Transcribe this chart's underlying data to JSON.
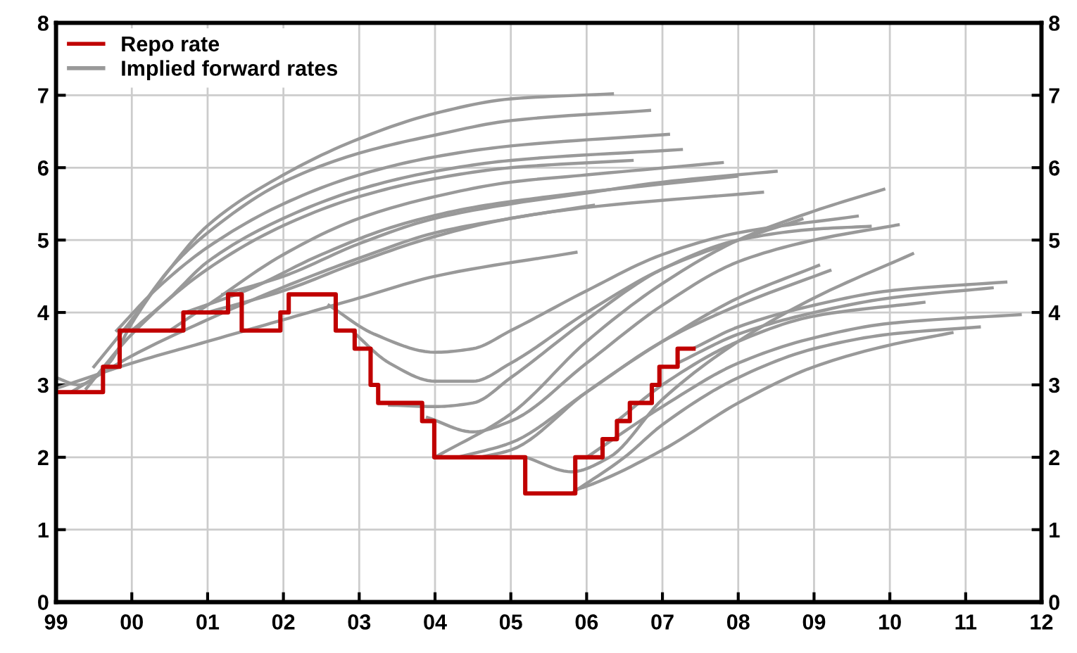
{
  "chart_data": {
    "type": "line",
    "xlim": [
      1999,
      2012
    ],
    "xticks": [
      {
        "value": 1999,
        "label": "99"
      },
      {
        "value": 2000,
        "label": "00"
      },
      {
        "value": 2001,
        "label": "01"
      },
      {
        "value": 2002,
        "label": "02"
      },
      {
        "value": 2003,
        "label": "03"
      },
      {
        "value": 2004,
        "label": "04"
      },
      {
        "value": 2005,
        "label": "05"
      },
      {
        "value": 2006,
        "label": "06"
      },
      {
        "value": 2007,
        "label": "07"
      },
      {
        "value": 2008,
        "label": "08"
      },
      {
        "value": 2009,
        "label": "09"
      },
      {
        "value": 2010,
        "label": "10"
      },
      {
        "value": 2011,
        "label": "11"
      },
      {
        "value": 2012,
        "label": "12"
      }
    ],
    "ylim": [
      0,
      8
    ],
    "yticks": [
      0,
      1,
      2,
      3,
      4,
      5,
      6,
      7,
      8
    ],
    "y2lim": [
      0,
      8
    ],
    "y2ticks": [
      0,
      1,
      2,
      3,
      4,
      5,
      6,
      7,
      8
    ],
    "grid": true,
    "legend": "top left",
    "line_style": "solid",
    "marker": "none",
    "series": [
      {
        "name": "Repo rate",
        "type": "step",
        "color": "#c00000",
        "x": [
          1999.0,
          1999.62,
          1999.84,
          2000.68,
          2001.27,
          2001.45,
          2001.96,
          2002.07,
          2002.69,
          2002.94,
          2003.15,
          2003.25,
          2003.83,
          2003.99,
          2005.19,
          2005.85,
          2006.21,
          2006.4,
          2006.57,
          2006.86,
          2006.96,
          2007.2,
          2007.41
        ],
        "values": [
          2.9,
          3.25,
          3.75,
          4.0,
          4.25,
          3.75,
          4.0,
          4.25,
          3.75,
          3.5,
          3.0,
          2.75,
          2.5,
          2.0,
          1.5,
          2.0,
          2.25,
          2.5,
          2.75,
          3.0,
          3.25,
          3.5,
          3.5
        ]
      },
      {
        "name": "Implied forward rates",
        "color": "#999999",
        "x": [
          1999.0,
          1999.3,
          1999.7,
          2000,
          2000.5,
          2001,
          2002,
          2003,
          2004,
          2005,
          2006.34
        ],
        "values": [
          3.1,
          3.0,
          3.3,
          3.85,
          4.6,
          5.2,
          5.9,
          6.4,
          6.75,
          6.95,
          7.02
        ]
      },
      {
        "color": "#999999",
        "x": [
          1999.5,
          2000,
          2000.5,
          2001,
          2002,
          2003,
          2004,
          2005,
          2006.83
        ],
        "values": [
          3.25,
          3.9,
          4.6,
          5.1,
          5.8,
          6.2,
          6.45,
          6.65,
          6.79
        ]
      },
      {
        "color": "#999999",
        "x": [
          1999.8,
          2000.3,
          2001,
          2002,
          2003,
          2004,
          2005,
          2007.08
        ],
        "values": [
          3.75,
          4.3,
          4.9,
          5.5,
          5.9,
          6.15,
          6.3,
          6.46
        ]
      },
      {
        "color": "#999999",
        "x": [
          2000.0,
          2000.5,
          2001,
          2002,
          2003,
          2004,
          2005,
          2007.25
        ],
        "values": [
          3.75,
          4.2,
          4.7,
          5.3,
          5.7,
          5.95,
          6.1,
          6.25
        ]
      },
      {
        "color": "#999999",
        "x": [
          1999.4,
          2000,
          2001,
          2002,
          2003,
          2004,
          2005,
          2006.6
        ],
        "values": [
          2.95,
          3.7,
          4.6,
          5.2,
          5.6,
          5.85,
          6.0,
          6.1
        ]
      },
      {
        "color": "#999999",
        "x": [
          2000.5,
          2001,
          2002,
          2003,
          2004,
          2005,
          2006,
          2007.79
        ],
        "values": [
          3.75,
          4.1,
          4.8,
          5.3,
          5.6,
          5.8,
          5.9,
          6.07
        ]
      },
      {
        "color": "#999999",
        "x": [
          2001.2,
          2002,
          2003,
          2004,
          2005,
          2006,
          2007,
          2008.5
        ],
        "values": [
          4.25,
          4.5,
          4.95,
          5.3,
          5.5,
          5.65,
          5.8,
          5.95
        ]
      },
      {
        "color": "#999999",
        "x": [
          2000.7,
          2001.5,
          2002.5,
          2003.5,
          2004.5,
          2005.5,
          2007.98
        ],
        "values": [
          4.0,
          4.3,
          4.8,
          5.2,
          5.45,
          5.6,
          5.88
        ]
      },
      {
        "color": "#999999",
        "x": [
          2001.0,
          2002,
          2003,
          2004,
          2005,
          2006,
          2008.32
        ],
        "values": [
          4.0,
          4.3,
          4.7,
          5.05,
          5.3,
          5.45,
          5.66
        ]
      },
      {
        "color": "#999999",
        "x": [
          1999.2,
          2000,
          2001,
          2002,
          2003,
          2004,
          2005,
          2006.09
        ],
        "values": [
          2.9,
          3.4,
          3.9,
          4.35,
          4.75,
          5.1,
          5.3,
          5.48
        ]
      },
      {
        "color": "#999999",
        "x": [
          1999.0,
          2000,
          2001,
          2002,
          2003,
          2004,
          2005.86
        ],
        "values": [
          2.95,
          3.3,
          3.6,
          3.9,
          4.2,
          4.5,
          4.83
        ]
      },
      {
        "color": "#999999",
        "x": [
          2002.6,
          2003.2,
          2004,
          2004.5,
          2005,
          2006,
          2007,
          2008,
          2009.57
        ],
        "values": [
          4.1,
          3.7,
          3.45,
          3.5,
          3.75,
          4.3,
          4.8,
          5.1,
          5.33
        ]
      },
      {
        "color": "#999999",
        "x": [
          2002.9,
          2003.4,
          2004,
          2004.5,
          2005,
          2006,
          2007,
          2008,
          2008.84
        ],
        "values": [
          3.75,
          3.3,
          3.05,
          3.05,
          3.3,
          4.0,
          4.6,
          5.0,
          5.29
        ]
      },
      {
        "color": "#999999",
        "x": [
          2003.4,
          2004,
          2004.5,
          2005,
          2006,
          2007,
          2008,
          2009,
          2009.74
        ],
        "values": [
          2.72,
          2.7,
          2.75,
          3.1,
          3.9,
          4.6,
          5.0,
          5.15,
          5.19
        ]
      },
      {
        "color": "#999999",
        "x": [
          2003.9,
          2004.5,
          2005,
          2006,
          2007,
          2008,
          2009,
          2010.11
        ],
        "values": [
          2.55,
          2.35,
          2.5,
          3.3,
          4.1,
          4.7,
          5.0,
          5.21
        ]
      },
      {
        "color": "#999999",
        "x": [
          2004.0,
          2005,
          2006,
          2007,
          2008,
          2009,
          2009.92
        ],
        "values": [
          2.0,
          2.6,
          3.6,
          4.4,
          5.0,
          5.4,
          5.7
        ]
      },
      {
        "color": "#999999",
        "x": [
          2004.3,
          2005,
          2006,
          2007,
          2008,
          2009.21
        ],
        "values": [
          2.0,
          2.2,
          2.9,
          3.6,
          4.1,
          4.58
        ]
      },
      {
        "color": "#999999",
        "x": [
          2004.6,
          2005,
          2006,
          2007,
          2008,
          2009.06
        ],
        "values": [
          2.0,
          2.1,
          2.9,
          3.6,
          4.2,
          4.65
        ]
      },
      {
        "color": "#999999",
        "x": [
          2005.2,
          2005.8,
          2006.3,
          2007,
          2008,
          2009,
          2010.3
        ],
        "values": [
          2.0,
          1.8,
          2.0,
          2.8,
          3.6,
          4.2,
          4.81
        ]
      },
      {
        "color": "#999999",
        "x": [
          2007.4,
          2008,
          2009,
          2010,
          2011.53
        ],
        "values": [
          3.5,
          3.8,
          4.1,
          4.3,
          4.42
        ]
      },
      {
        "color": "#999999",
        "x": [
          2007.2,
          2008,
          2009,
          2010,
          2011.35
        ],
        "values": [
          3.3,
          3.7,
          4.0,
          4.2,
          4.34
        ]
      },
      {
        "color": "#999999",
        "x": [
          2006.4,
          2007,
          2008,
          2009,
          2010.45
        ],
        "values": [
          2.5,
          3.0,
          3.6,
          3.95,
          4.14
        ]
      },
      {
        "color": "#999999",
        "x": [
          2006.0,
          2007,
          2008,
          2009,
          2010,
          2011.72
        ],
        "values": [
          2.0,
          2.7,
          3.3,
          3.65,
          3.85,
          3.97
        ]
      },
      {
        "color": "#999999",
        "x": [
          2005.8,
          2006.5,
          2007,
          2008,
          2009,
          2010,
          2011.18
        ],
        "values": [
          1.5,
          2.0,
          2.45,
          3.1,
          3.5,
          3.7,
          3.8
        ]
      },
      {
        "color": "#999999",
        "x": [
          2005.85,
          2006,
          2007,
          2008,
          2009,
          2010,
          2010.82
        ],
        "values": [
          1.55,
          1.6,
          2.1,
          2.75,
          3.25,
          3.55,
          3.72
        ]
      }
    ]
  }
}
